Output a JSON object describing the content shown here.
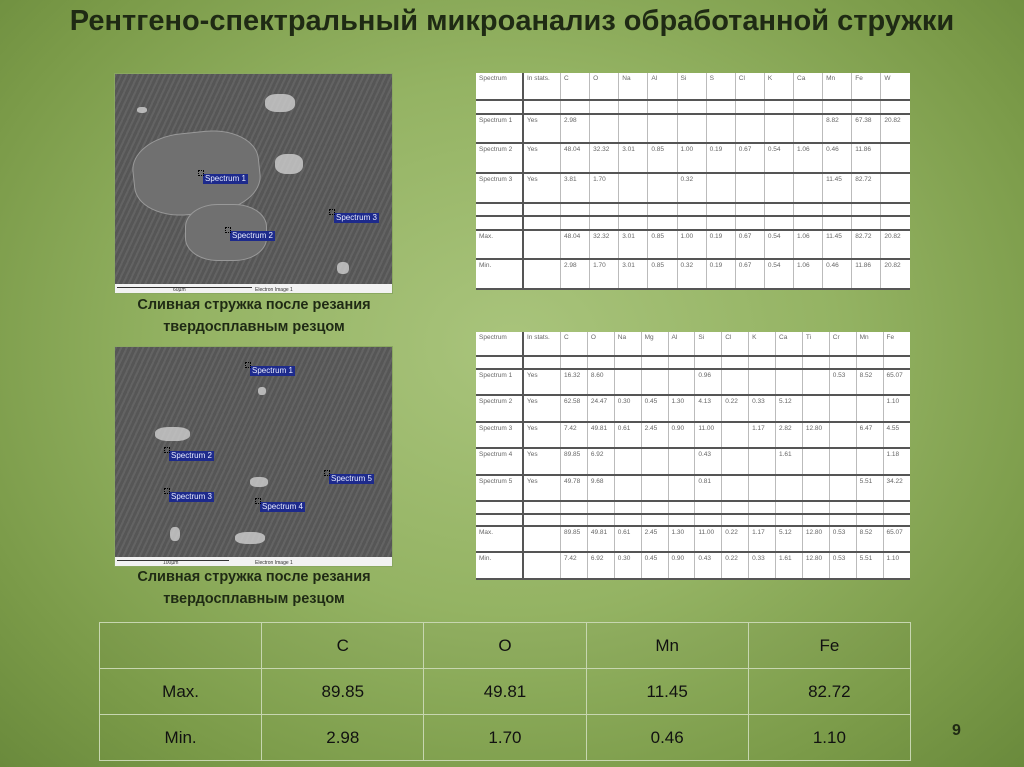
{
  "title": "Рентгено-спектральный микроанализ обработанной стружки",
  "image1": {
    "labels": [
      "Spectrum 1",
      "Spectrum 2",
      "Spectrum 3"
    ],
    "scale": "60µm",
    "image_name": "Electron Image 1",
    "caption_line1": "Сливная стружка после резания",
    "caption_line2": "твердосплавным резцом"
  },
  "image2": {
    "labels": [
      "Spectrum 1",
      "Spectrum 2",
      "Spectrum 3",
      "Spectrum 4",
      "Spectrum 5"
    ],
    "scale": "100µm",
    "image_name": "Electron Image 1",
    "caption_line1": "Сливная стружка после резания",
    "caption_line2": "твердосплавным резцом"
  },
  "table1": {
    "header": [
      "Spectrum",
      "In stats.",
      "C",
      "O",
      "Na",
      "Al",
      "Si",
      "S",
      "Cl",
      "K",
      "Ca",
      "Mn",
      "Fe",
      "W"
    ],
    "rows": [
      [
        "",
        "",
        "",
        "",
        "",
        "",
        "",
        "",
        "",
        "",
        "",
        "",
        "",
        ""
      ],
      [
        "Spectrum 1",
        "Yes",
        "2.98",
        "",
        "",
        "",
        "",
        "",
        "",
        "",
        "",
        "8.82",
        "67.38",
        "20.82"
      ],
      [
        "Spectrum 2",
        "Yes",
        "48.04",
        "32.32",
        "3.01",
        "0.85",
        "1.00",
        "0.19",
        "0.67",
        "0.54",
        "1.06",
        "0.46",
        "11.86",
        ""
      ],
      [
        "Spectrum 3",
        "Yes",
        "3.81",
        "1.70",
        "",
        "",
        "0.32",
        "",
        "",
        "",
        "",
        "11.45",
        "82.72",
        ""
      ],
      [
        "",
        "",
        "",
        "",
        "",
        "",
        "",
        "",
        "",
        "",
        "",
        "",
        "",
        ""
      ],
      [
        "",
        "",
        "",
        "",
        "",
        "",
        "",
        "",
        "",
        "",
        "",
        "",
        "",
        ""
      ],
      [
        "Max.",
        "",
        "48.04",
        "32.32",
        "3.01",
        "0.85",
        "1.00",
        "0.19",
        "0.67",
        "0.54",
        "1.06",
        "11.45",
        "82.72",
        "20.82"
      ],
      [
        "Min.",
        "",
        "2.98",
        "1.70",
        "3.01",
        "0.85",
        "0.32",
        "0.19",
        "0.67",
        "0.54",
        "1.06",
        "0.46",
        "11.86",
        "20.82"
      ]
    ]
  },
  "table2": {
    "header": [
      "Spectrum",
      "In stats.",
      "C",
      "O",
      "Na",
      "Mg",
      "Al",
      "Si",
      "Cl",
      "K",
      "Ca",
      "Ti",
      "Cr",
      "Mn",
      "Fe"
    ],
    "rows": [
      [
        "",
        "",
        "",
        "",
        "",
        "",
        "",
        "",
        "",
        "",
        "",
        "",
        "",
        "",
        ""
      ],
      [
        "Spectrum 1",
        "Yes",
        "16.32",
        "8.60",
        "",
        "",
        "",
        "0.96",
        "",
        "",
        "",
        "",
        "0.53",
        "8.52",
        "65.07"
      ],
      [
        "Spectrum 2",
        "Yes",
        "62.58",
        "24.47",
        "0.30",
        "0.45",
        "1.30",
        "4.13",
        "0.22",
        "0.33",
        "5.12",
        "",
        "",
        "",
        "1.10"
      ],
      [
        "Spectrum 3",
        "Yes",
        "7.42",
        "49.81",
        "0.61",
        "2.45",
        "0.90",
        "11.00",
        "",
        "1.17",
        "2.82",
        "12.80",
        "",
        "6.47",
        "4.55"
      ],
      [
        "Spectrum 4",
        "Yes",
        "89.85",
        "6.92",
        "",
        "",
        "",
        "0.43",
        "",
        "",
        "1.61",
        "",
        "",
        "",
        "1.18"
      ],
      [
        "Spectrum 5",
        "Yes",
        "49.78",
        "9.68",
        "",
        "",
        "",
        "0.81",
        "",
        "",
        "",
        "",
        "",
        "5.51",
        "34.22"
      ],
      [
        "",
        "",
        "",
        "",
        "",
        "",
        "",
        "",
        "",
        "",
        "",
        "",
        "",
        "",
        ""
      ],
      [
        "",
        "",
        "",
        "",
        "",
        "",
        "",
        "",
        "",
        "",
        "",
        "",
        "",
        "",
        ""
      ],
      [
        "Max.",
        "",
        "89.85",
        "49.81",
        "0.61",
        "2.45",
        "1.30",
        "11.00",
        "0.22",
        "1.17",
        "5.12",
        "12.80",
        "0.53",
        "8.52",
        "65.07"
      ],
      [
        "Min.",
        "",
        "7.42",
        "6.92",
        "0.30",
        "0.45",
        "0.90",
        "0.43",
        "0.22",
        "0.33",
        "1.61",
        "12.80",
        "0.53",
        "5.51",
        "1.10"
      ]
    ]
  },
  "summary": {
    "header": [
      "",
      "C",
      "O",
      "Mn",
      "Fe"
    ],
    "rows": [
      [
        "Max.",
        "89.85",
        "49.81",
        "11.45",
        "82.72"
      ],
      [
        "Min.",
        "2.98",
        "1.70",
        "0.46",
        "1.10"
      ]
    ]
  },
  "page_number": "9"
}
